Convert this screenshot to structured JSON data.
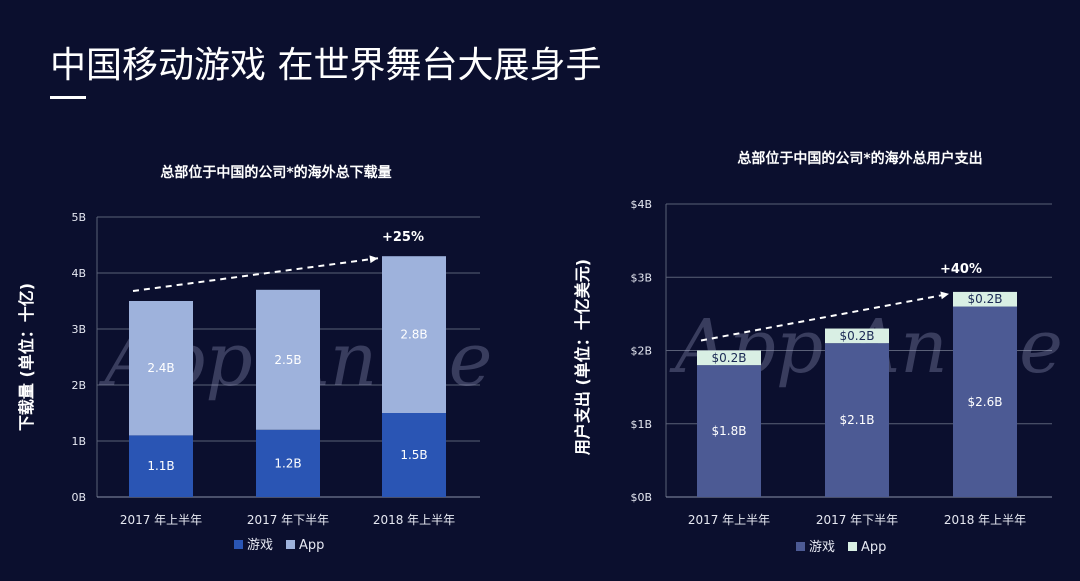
{
  "page": {
    "title": "中国移动游戏 在世界舞台大展身手",
    "watermark": "App Annie"
  },
  "chart_data": [
    {
      "type": "bar",
      "stacked": true,
      "title": "总部位于中国的公司*的海外总下载量",
      "ylabel": "下载量 (单位：十亿)",
      "categories": [
        "2017 年上半年",
        "2017 年下半年",
        "2018 年上半年"
      ],
      "series": [
        {
          "name": "游戏",
          "values": [
            1.1,
            1.2,
            1.5
          ],
          "labels": [
            "1.1B",
            "1.2B",
            "1.5B"
          ],
          "color": "#2a55b4"
        },
        {
          "name": "App",
          "values": [
            2.4,
            2.5,
            2.8
          ],
          "labels": [
            "2.4B",
            "2.5B",
            "2.8B"
          ],
          "color": "#9eb2dc"
        }
      ],
      "ylim": [
        0,
        5
      ],
      "yticks": [
        0,
        1,
        2,
        3,
        4,
        5
      ],
      "ytick_labels": [
        "0B",
        "1B",
        "2B",
        "3B",
        "4B",
        "5B"
      ],
      "growth_label": "+25%",
      "grid": true,
      "legend_position": "bottom"
    },
    {
      "type": "bar",
      "stacked": true,
      "title": "总部位于中国的公司*的海外总用户支出",
      "ylabel": "用户支出 (单位：十亿美元)",
      "categories": [
        "2017 年上半年",
        "2017 年下半年",
        "2018 年上半年"
      ],
      "series": [
        {
          "name": "游戏",
          "values": [
            1.8,
            2.1,
            2.6
          ],
          "labels": [
            "$1.8B",
            "$2.1B",
            "$2.6B"
          ],
          "color": "#4c5a94"
        },
        {
          "name": "App",
          "values": [
            0.2,
            0.2,
            0.2
          ],
          "labels": [
            "$0.2B",
            "$0.2B",
            "$0.2B"
          ],
          "color": "#d9efe4"
        }
      ],
      "ylim": [
        0,
        4
      ],
      "yticks": [
        0,
        1,
        2,
        3,
        4
      ],
      "ytick_labels": [
        "$0B",
        "$1B",
        "$2B",
        "$3B",
        "$4B"
      ],
      "growth_label": "+40%",
      "grid": true,
      "legend_position": "bottom"
    }
  ]
}
